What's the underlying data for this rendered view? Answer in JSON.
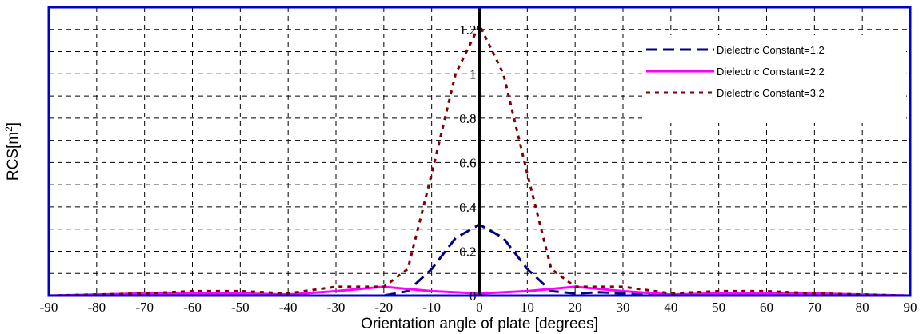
{
  "chart_data": {
    "type": "line",
    "xlabel": "Orientation angle of plate [degrees]",
    "ylabel": "RCS[m",
    "ylabel_sup": "2",
    "ylabel_end": "]",
    "xlim": [
      -90,
      90
    ],
    "ylim": [
      0,
      1.3
    ],
    "grid": true,
    "legend_position": "top-right",
    "x_ticks": [
      "-90",
      "-80",
      "-70",
      "-60",
      "-50",
      "-40",
      "-30",
      "-20",
      "-10",
      "0",
      "10",
      "20",
      "30",
      "40",
      "50",
      "60",
      "70",
      "80",
      "90"
    ],
    "y_ticks": [
      "0",
      "0.2",
      "0.4",
      "0.6",
      "0.8",
      "1",
      "1.2"
    ],
    "colors": {
      "frame": "#0000cc",
      "grid": "#000000"
    },
    "series": [
      {
        "name": "Dielectric Constant=1.2",
        "color": "#000080",
        "dash": "14,7",
        "x": [
          -90,
          -80,
          -70,
          -60,
          -50,
          -40,
          -30,
          -20,
          -15,
          -10,
          -5,
          0,
          5,
          10,
          15,
          20,
          25,
          30,
          40,
          50,
          60,
          70,
          80,
          90
        ],
        "y": [
          0,
          0,
          0,
          0,
          0,
          0,
          0,
          0,
          0.02,
          0.12,
          0.26,
          0.32,
          0.26,
          0.12,
          0.02,
          0.01,
          0.015,
          0.01,
          0.005,
          0,
          0,
          0,
          0,
          0
        ]
      },
      {
        "name": "Dielectric Constant=2.2",
        "color": "#ff00ff",
        "dash": "",
        "x": [
          -90,
          -80,
          -70,
          -60,
          -50,
          -40,
          -30,
          -20,
          -10,
          0,
          10,
          20,
          30,
          40,
          50,
          60,
          70,
          80,
          90
        ],
        "y": [
          0,
          0.005,
          0.01,
          0.01,
          0.01,
          0.005,
          0.02,
          0.04,
          0.02,
          0.01,
          0.02,
          0.04,
          0.02,
          0.005,
          0.01,
          0.01,
          0.01,
          0.005,
          0
        ]
      },
      {
        "name": "Dielectric Constant=3.2",
        "color": "#800000",
        "dash": "5,6",
        "x": [
          -90,
          -70,
          -60,
          -50,
          -40,
          -30,
          -20,
          -15,
          -10,
          -5,
          0,
          5,
          10,
          15,
          20,
          30,
          40,
          50,
          60,
          70,
          90
        ],
        "y": [
          0,
          0.01,
          0.02,
          0.02,
          0.01,
          0.04,
          0.04,
          0.12,
          0.55,
          1.0,
          1.22,
          1.0,
          0.55,
          0.12,
          0.04,
          0.04,
          0.01,
          0.02,
          0.02,
          0.01,
          0
        ]
      }
    ]
  }
}
